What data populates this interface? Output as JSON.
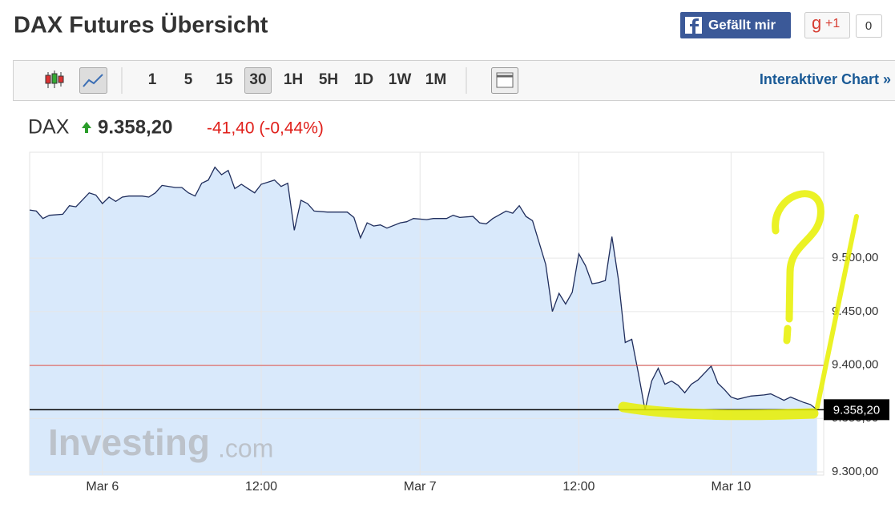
{
  "header": {
    "title": "DAX Futures Übersicht",
    "like_button": "Gefällt mir",
    "gplus_icon": "g",
    "gplus_button": "+1",
    "gplus_count": "0"
  },
  "toolbar": {
    "timeframes": [
      "1",
      "5",
      "15",
      "30",
      "1H",
      "5H",
      "1D",
      "1W",
      "1M"
    ],
    "active_timeframe": "30",
    "interactive_link": "Interaktiver Chart »"
  },
  "quote": {
    "symbol": "DAX",
    "price": "9.358,20",
    "change": "-41,40 (-0,44%)"
  },
  "watermark": {
    "brand": "Investing",
    "suffix": ".com"
  },
  "chart_data": {
    "type": "line",
    "x": [
      0,
      1,
      2,
      3,
      5,
      6,
      7,
      9,
      10,
      11,
      12,
      13,
      14,
      15,
      17,
      18,
      19,
      20,
      22,
      23,
      24,
      25,
      26,
      27,
      28,
      29,
      30,
      31,
      32,
      33,
      34,
      35,
      37,
      38,
      39,
      40,
      41,
      42,
      43,
      45,
      46,
      48,
      49,
      50,
      51,
      52,
      53,
      54,
      56,
      57,
      58,
      60,
      61,
      62,
      63,
      64,
      65,
      67,
      68,
      69,
      70,
      72,
      73,
      74,
      75,
      76,
      78,
      79,
      80,
      81,
      82,
      83,
      84,
      85,
      86,
      87,
      88,
      89,
      90,
      91,
      92,
      93,
      94,
      95,
      96,
      97,
      98,
      99,
      100,
      101,
      103,
      104,
      105,
      106,
      107,
      109,
      111,
      112,
      113,
      114,
      115,
      117,
      118,
      119
    ],
    "values": [
      9545,
      9544,
      9537,
      9540,
      9541,
      9549,
      9548,
      9561,
      9559,
      9551,
      9557,
      9553,
      9557,
      9558,
      9558,
      9557,
      9561,
      9568,
      9566,
      9566,
      9561,
      9558,
      9570,
      9573,
      9585,
      9578,
      9582,
      9565,
      9569,
      9565,
      9561,
      9569,
      9573,
      9567,
      9570,
      9526,
      9554,
      9551,
      9544,
      9543,
      9543,
      9543,
      9538,
      9519,
      9533,
      9530,
      9531,
      9528,
      9533,
      9534,
      9537,
      9536,
      9537,
      9537,
      9537,
      9540,
      9538,
      9539,
      9533,
      9532,
      9537,
      9544,
      9542,
      9549,
      9539,
      9535,
      9494,
      9450,
      9467,
      9457,
      9468,
      9504,
      9493,
      9476,
      9477,
      9479,
      9520,
      9479,
      9421,
      9424,
      9392,
      9358,
      9385,
      9397,
      9382,
      9385,
      9381,
      9374,
      9382,
      9386,
      9399,
      9383,
      9377,
      9370,
      9368,
      9371,
      9372,
      9373,
      9370,
      9367,
      9370,
      9365,
      9363,
      9358.2
    ],
    "color": "#1f2d5c",
    "fill": "#d9e9fb",
    "xlim": [
      0,
      120
    ],
    "ylim": [
      9297,
      9599
    ],
    "xticks": [
      {
        "value": 11,
        "label": "Mar 6"
      },
      {
        "value": 35,
        "label": "12:00"
      },
      {
        "value": 59,
        "label": "Mar 7"
      },
      {
        "value": 83,
        "label": "12:00"
      },
      {
        "value": 106,
        "label": "Mar 10"
      }
    ],
    "yticks": [
      {
        "value": 9300,
        "label": "9.300,00"
      },
      {
        "value": 9350,
        "label": "9.350,00"
      },
      {
        "value": 9400,
        "label": "9.400,00"
      },
      {
        "value": 9450,
        "label": "9.450,00"
      },
      {
        "value": 9500,
        "label": "9.500,00"
      }
    ],
    "current": {
      "value": 9358.2,
      "label": "9.358,20"
    },
    "previous_close": 9399.6,
    "previous_close_color": "#d9534f",
    "grid": true
  }
}
